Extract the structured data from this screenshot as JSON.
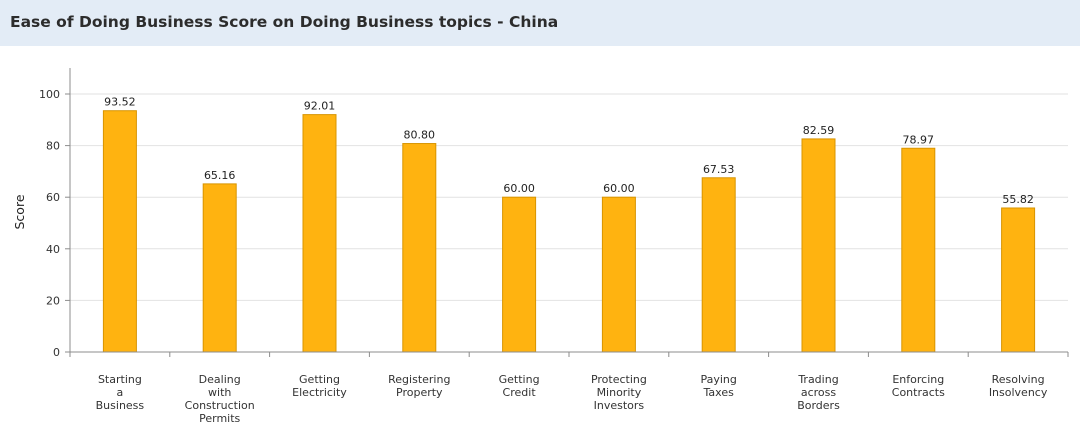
{
  "header": {
    "title": "Ease of Doing Business Score on Doing Business topics - China"
  },
  "colors": {
    "bar": "#ffb310",
    "bar_edge": "#d89400",
    "grid": "#e2e2e2",
    "axis": "#8c8c8c"
  },
  "chart_data": {
    "type": "bar",
    "title": "Ease of Doing Business Score on Doing Business topics - China",
    "ylabel": "Score",
    "xlabel": "",
    "ylim": [
      0,
      100
    ],
    "yticks": [
      0,
      20,
      40,
      60,
      80,
      100
    ],
    "grid": true,
    "categories": [
      "Starting a Business",
      "Dealing with Construction Permits",
      "Getting Electricity",
      "Registering Property",
      "Getting Credit",
      "Protecting Minority Investors",
      "Paying Taxes",
      "Trading across Borders",
      "Enforcing Contracts",
      "Resolving Insolvency"
    ],
    "category_lines": [
      [
        "Starting",
        "a",
        "Business"
      ],
      [
        "Dealing",
        "with",
        "Construction",
        "Permits"
      ],
      [
        "Getting",
        "Electricity"
      ],
      [
        "Registering",
        "Property"
      ],
      [
        "Getting",
        "Credit"
      ],
      [
        "Protecting",
        "Minority",
        "Investors"
      ],
      [
        "Paying",
        "Taxes"
      ],
      [
        "Trading",
        "across",
        "Borders"
      ],
      [
        "Enforcing",
        "Contracts"
      ],
      [
        "Resolving",
        "Insolvency"
      ]
    ],
    "values": [
      93.52,
      65.16,
      92.01,
      80.8,
      60.0,
      60.0,
      67.53,
      82.59,
      78.97,
      55.82
    ],
    "value_labels": [
      "93.52",
      "65.16",
      "92.01",
      "80.80",
      "60.00",
      "60.00",
      "67.53",
      "82.59",
      "78.97",
      "55.82"
    ]
  }
}
